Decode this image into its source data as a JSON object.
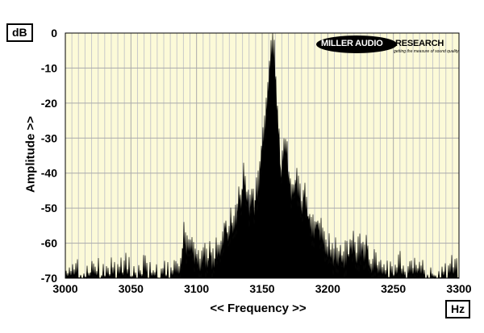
{
  "unit_y": "dB",
  "unit_x": "Hz",
  "logo": {
    "left_text": "MILLER AUDIO",
    "right_text": "RESEARCH",
    "tagline": "getting the measure of sound quality"
  },
  "colors": {
    "plot_bg": "#fcfad8",
    "grid_minor": "#c9c9c9",
    "grid_major": "#aaaaaa",
    "trace": "#000000"
  },
  "chart_data": {
    "type": "area",
    "xlabel": "<< Frequency >>",
    "ylabel": "Amplitude >>",
    "xlim": [
      3000,
      3300
    ],
    "ylim": [
      -70,
      0
    ],
    "xticks": [
      3000,
      3050,
      3100,
      3150,
      3200,
      3250,
      3300
    ],
    "yticks": [
      0,
      -10,
      -20,
      -30,
      -40,
      -50,
      -60,
      -70
    ],
    "grid": true,
    "series": [
      {
        "x": [
          3000,
          3005,
          3010,
          3015,
          3020,
          3025,
          3030,
          3035,
          3040,
          3045,
          3050,
          3055,
          3060,
          3065,
          3070,
          3075,
          3080,
          3085,
          3088,
          3090,
          3092,
          3095,
          3098,
          3100,
          3103,
          3105,
          3108,
          3110,
          3112,
          3115,
          3118,
          3120,
          3122,
          3124,
          3126,
          3128,
          3130,
          3132,
          3134,
          3136,
          3138,
          3140,
          3142,
          3144,
          3146,
          3148,
          3150,
          3152,
          3154,
          3155,
          3156,
          3157,
          3158,
          3159,
          3160,
          3161,
          3162,
          3163,
          3164,
          3166,
          3168,
          3170,
          3172,
          3174,
          3176,
          3178,
          3180,
          3182,
          3184,
          3186,
          3188,
          3190,
          3192,
          3194,
          3196,
          3198,
          3200,
          3203,
          3205,
          3208,
          3210,
          3212,
          3215,
          3218,
          3220,
          3222,
          3225,
          3228,
          3230,
          3232,
          3235,
          3240,
          3245,
          3250,
          3255,
          3260,
          3265,
          3270,
          3275,
          3280,
          3285,
          3290,
          3295,
          3300
        ],
        "y": [
          -66,
          -69,
          -68,
          -70,
          -66,
          -68,
          -70,
          -67,
          -69,
          -66,
          -68,
          -70,
          -67,
          -69,
          -70,
          -68,
          -70,
          -68,
          -65,
          -56,
          -61,
          -58,
          -62,
          -63,
          -66,
          -63,
          -65,
          -61,
          -66,
          -60,
          -62,
          -57,
          -53,
          -58,
          -51,
          -55,
          -52,
          -48,
          -45,
          -40,
          -44,
          -48,
          -45,
          -47,
          -44,
          -40,
          -31,
          -25,
          -19,
          -11,
          -5,
          -1,
          0,
          -4,
          -9,
          -16,
          -24,
          -29,
          -39,
          -34,
          -30,
          -38,
          -43,
          -46,
          -41,
          -45,
          -48,
          -44,
          -51,
          -50,
          -53,
          -55,
          -52,
          -57,
          -54,
          -60,
          -59,
          -63,
          -61,
          -63,
          -60,
          -64,
          -62,
          -61,
          -58,
          -61,
          -60,
          -63,
          -58,
          -66,
          -65,
          -68,
          -67,
          -70,
          -66,
          -70,
          -68,
          -66,
          -69,
          -69,
          -70,
          -69,
          -67,
          -69
        ]
      }
    ]
  }
}
